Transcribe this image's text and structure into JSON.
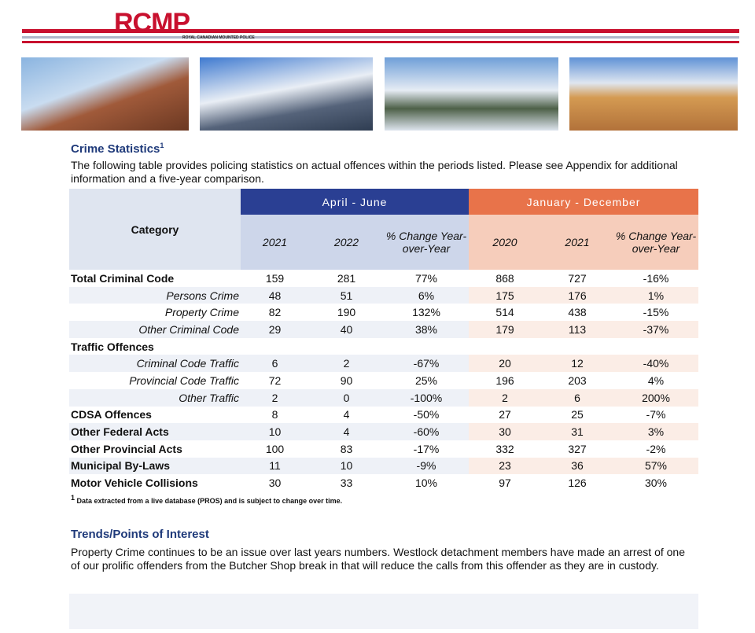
{
  "header": {
    "logo": "RCMP",
    "tagline": "ROYAL CANADIAN MOUNTED POLICE"
  },
  "section": {
    "title": "Crime Statistics",
    "title_mark": "1",
    "intro": "The following table provides policing statistics on actual offences within the periods listed. Please see Appendix for additional information and a five-year comparison."
  },
  "table": {
    "category_header": "Category",
    "groups": [
      {
        "label": "April - June",
        "columns": [
          "2021",
          "2022",
          "% Change Year-over-Year"
        ]
      },
      {
        "label": "January - December",
        "columns": [
          "2020",
          "2021",
          "% Change Year-over-Year"
        ]
      }
    ],
    "rows": [
      {
        "label": "Total Criminal Code",
        "cells": [
          "159",
          "281",
          "77%",
          "868",
          "727",
          "-16%"
        ],
        "subrows": [
          {
            "label": "Persons Crime",
            "cells": [
              "48",
              "51",
              "6%",
              "175",
              "176",
              "1%"
            ]
          },
          {
            "label": "Property Crime",
            "cells": [
              "82",
              "190",
              "132%",
              "514",
              "438",
              "-15%"
            ]
          },
          {
            "label": "Other Criminal Code",
            "cells": [
              "29",
              "40",
              "38%",
              "179",
              "113",
              "-37%"
            ]
          }
        ]
      },
      {
        "label": "Traffic Offences",
        "cells": [],
        "subrows": [
          {
            "label": "Criminal Code Traffic",
            "cells": [
              "6",
              "2",
              "-67%",
              "20",
              "12",
              "-40%"
            ]
          },
          {
            "label": "Provincial Code Traffic",
            "cells": [
              "72",
              "90",
              "25%",
              "196",
              "203",
              "4%"
            ]
          },
          {
            "label": "Other Traffic",
            "cells": [
              "2",
              "0",
              "-100%",
              "2",
              "6",
              "200%"
            ]
          }
        ]
      },
      {
        "label": "CDSA Offences",
        "cells": [
          "8",
          "4",
          "-50%",
          "27",
          "25",
          "-7%"
        ]
      },
      {
        "label": "Other Federal Acts",
        "cells": [
          "10",
          "4",
          "-60%",
          "30",
          "31",
          "3%"
        ]
      },
      {
        "label": "Other Provincial Acts",
        "cells": [
          "100",
          "83",
          "-17%",
          "332",
          "327",
          "-2%"
        ]
      },
      {
        "label": "Municipal By-Laws",
        "cells": [
          "11",
          "10",
          "-9%",
          "23",
          "36",
          "57%"
        ]
      },
      {
        "label": "Motor Vehicle Collisions",
        "cells": [
          "30",
          "33",
          "10%",
          "97",
          "126",
          "30%"
        ]
      }
    ],
    "footnote_mark": "1",
    "footnote": "Data extracted from a live database (PROS) and is subject to change over time."
  },
  "trends": {
    "title": "Trends/Points of Interest",
    "text": "Property Crime continues to be an issue over last years numbers.  Westlock detachment members have made an arrest of one of our prolific offenders from the Butcher Shop break in that will reduce the calls from this offender as they are in custody."
  }
}
